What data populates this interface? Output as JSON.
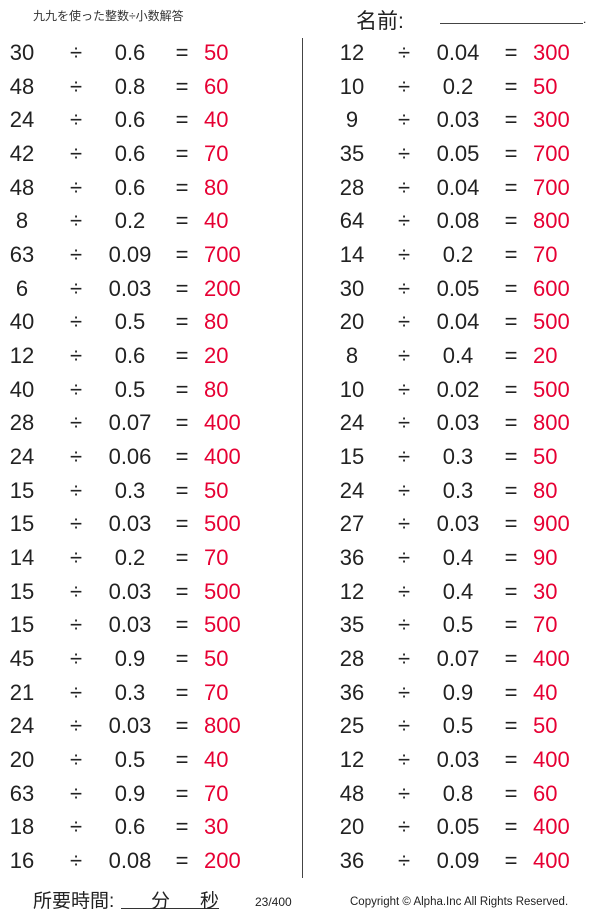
{
  "header": {
    "title": "九九を使った整数÷小数解答",
    "name_label": "名前:",
    "name_dot": "."
  },
  "footer": {
    "time_label": "所要時間:",
    "minutes_label": "分",
    "seconds_label": "秒",
    "page": "23/400",
    "copyright": "Copyright © Alpha.Inc All Rights Reserved."
  },
  "symbols": {
    "divide": "÷",
    "equals": "="
  },
  "colors": {
    "answer": "#e60033"
  },
  "left": [
    [
      "30",
      "0.6",
      "50"
    ],
    [
      "48",
      "0.8",
      "60"
    ],
    [
      "24",
      "0.6",
      "40"
    ],
    [
      "42",
      "0.6",
      "70"
    ],
    [
      "48",
      "0.6",
      "80"
    ],
    [
      "8",
      "0.2",
      "40"
    ],
    [
      "63",
      "0.09",
      "700"
    ],
    [
      "6",
      "0.03",
      "200"
    ],
    [
      "40",
      "0.5",
      "80"
    ],
    [
      "12",
      "0.6",
      "20"
    ],
    [
      "40",
      "0.5",
      "80"
    ],
    [
      "28",
      "0.07",
      "400"
    ],
    [
      "24",
      "0.06",
      "400"
    ],
    [
      "15",
      "0.3",
      "50"
    ],
    [
      "15",
      "0.03",
      "500"
    ],
    [
      "14",
      "0.2",
      "70"
    ],
    [
      "15",
      "0.03",
      "500"
    ],
    [
      "15",
      "0.03",
      "500"
    ],
    [
      "45",
      "0.9",
      "50"
    ],
    [
      "21",
      "0.3",
      "70"
    ],
    [
      "24",
      "0.03",
      "800"
    ],
    [
      "20",
      "0.5",
      "40"
    ],
    [
      "63",
      "0.9",
      "70"
    ],
    [
      "18",
      "0.6",
      "30"
    ],
    [
      "16",
      "0.08",
      "200"
    ]
  ],
  "right": [
    [
      "12",
      "0.04",
      "300"
    ],
    [
      "10",
      "0.2",
      "50"
    ],
    [
      "9",
      "0.03",
      "300"
    ],
    [
      "35",
      "0.05",
      "700"
    ],
    [
      "28",
      "0.04",
      "700"
    ],
    [
      "64",
      "0.08",
      "800"
    ],
    [
      "14",
      "0.2",
      "70"
    ],
    [
      "30",
      "0.05",
      "600"
    ],
    [
      "20",
      "0.04",
      "500"
    ],
    [
      "8",
      "0.4",
      "20"
    ],
    [
      "10",
      "0.02",
      "500"
    ],
    [
      "24",
      "0.03",
      "800"
    ],
    [
      "15",
      "0.3",
      "50"
    ],
    [
      "24",
      "0.3",
      "80"
    ],
    [
      "27",
      "0.03",
      "900"
    ],
    [
      "36",
      "0.4",
      "90"
    ],
    [
      "12",
      "0.4",
      "30"
    ],
    [
      "35",
      "0.5",
      "70"
    ],
    [
      "28",
      "0.07",
      "400"
    ],
    [
      "36",
      "0.9",
      "40"
    ],
    [
      "25",
      "0.5",
      "50"
    ],
    [
      "12",
      "0.03",
      "400"
    ],
    [
      "48",
      "0.8",
      "60"
    ],
    [
      "20",
      "0.05",
      "400"
    ],
    [
      "36",
      "0.09",
      "400"
    ]
  ]
}
